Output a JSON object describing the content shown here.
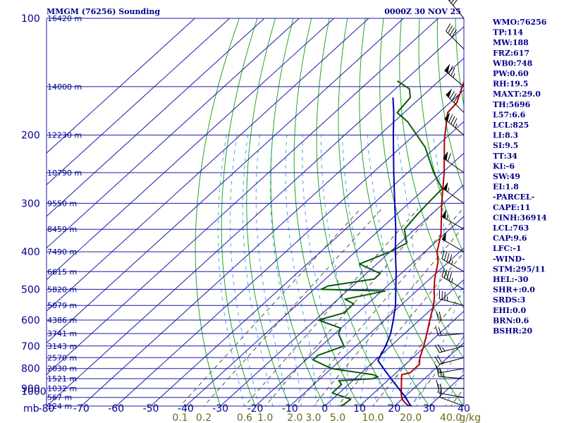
{
  "header": {
    "station": "MMGM (76256) Sounding",
    "datetime": "0000Z 30 NOV 25"
  },
  "stats": [
    "WMO:76256",
    "TP:114",
    "MW:188",
    "FRZ:617",
    "WB0:748",
    "PW:0.60",
    "RH:19.5",
    "MAXT:29.0",
    "TH:5696",
    "L57:6.6",
    "LCL:825",
    "LI:8.3",
    "SI:9.5",
    "TT:34",
    "KI:-6",
    "SW:49",
    "EI:1.8",
    "-PARCEL-",
    "CAPE:11",
    "CINH:36914",
    "LCL:763",
    "CAP:9.6",
    "LFC:-1",
    "-WIND-",
    "STM:295/11",
    "HEL:-30",
    "SHR+:0.0",
    "SRDS:3",
    "EHI:0.0",
    "BRN:0.6",
    "BSHR:20"
  ],
  "chart_data": {
    "type": "line",
    "title": "MMGM (76256) Sounding",
    "xlabel": "",
    "ylabel": "mb",
    "x_unit_label": "mb",
    "mixing_ratio_unit": "g/kg",
    "xlim": [
      -80,
      40
    ],
    "ylim": [
      1000,
      100
    ],
    "y_scale": "log",
    "grid": true,
    "pressure_ticks": [
      100,
      200,
      300,
      400,
      500,
      600,
      700,
      800,
      900,
      1000
    ],
    "temperature_ticks": [
      -80,
      -70,
      -60,
      -50,
      -40,
      -30,
      -20,
      -10,
      0,
      10,
      20,
      30,
      40
    ],
    "height_labels": [
      {
        "p": 100,
        "label": "16420 m"
      },
      {
        "p": 150,
        "label": "14000 m"
      },
      {
        "p": 200,
        "label": "12230 m"
      },
      {
        "p": 250,
        "label": "10790 m"
      },
      {
        "p": 300,
        "label": "9550 m"
      },
      {
        "p": 350,
        "label": "8459 m"
      },
      {
        "p": 400,
        "label": "7490 m"
      },
      {
        "p": 450,
        "label": "6615 m"
      },
      {
        "p": 500,
        "label": "5820 m"
      },
      {
        "p": 550,
        "label": "5079 m"
      },
      {
        "p": 600,
        "label": "4386 m"
      },
      {
        "p": 650,
        "label": "3741 m"
      },
      {
        "p": 700,
        "label": "3143 m"
      },
      {
        "p": 750,
        "label": "2570 m"
      },
      {
        "p": 800,
        "label": "2030 m"
      },
      {
        "p": 850,
        "label": "1521 m"
      },
      {
        "p": 900,
        "label": "1032 m"
      },
      {
        "p": 950,
        "label": "567 m"
      },
      {
        "p": 1000,
        "label": "124 m"
      }
    ],
    "mixing_ratio_lines": [
      0.1,
      0.2,
      0.6,
      1.0,
      2.0,
      3.0,
      5.0,
      10.0,
      20.0,
      40.0
    ],
    "mixing_ratio_labels": [
      "0.1",
      "0.2",
      "0.6",
      "1.0",
      "2.0",
      "3.0",
      "5.0",
      "10.0",
      "20.0",
      "40.0"
    ],
    "series": [
      {
        "name": "Temperature",
        "color": "#b30000",
        "points": [
          [
            1008,
            25.4
          ],
          [
            990,
            23.0
          ],
          [
            960,
            20.0
          ],
          [
            925,
            17.8
          ],
          [
            900,
            16.4
          ],
          [
            850,
            13.4
          ],
          [
            830,
            12.2
          ],
          [
            820,
            14.0
          ],
          [
            780,
            14.0
          ],
          [
            750,
            12.0
          ],
          [
            700,
            9.5
          ],
          [
            650,
            6.4
          ],
          [
            600,
            3.0
          ],
          [
            550,
            -0.6
          ],
          [
            525,
            -2.8
          ],
          [
            500,
            -5.5
          ],
          [
            470,
            -8.6
          ],
          [
            425,
            -13.0
          ],
          [
            400,
            -16.5
          ],
          [
            360,
            -21.0
          ],
          [
            300,
            -30.5
          ],
          [
            250,
            -39.5
          ],
          [
            205,
            -50.0
          ],
          [
            175,
            -57.5
          ],
          [
            165,
            -58.0
          ],
          [
            150,
            -61.5
          ],
          [
            125,
            -68.0
          ],
          [
            100,
            -75.0
          ]
        ]
      },
      {
        "name": "Dewpoint",
        "color": "#0b5a0b",
        "points": [
          [
            1008,
            4.0
          ],
          [
            990,
            5.0
          ],
          [
            960,
            5.3
          ],
          [
            925,
            -2.0
          ],
          [
            900,
            -2.0
          ],
          [
            880,
            -2.0
          ],
          [
            860,
            -4.0
          ],
          [
            850,
            5.0
          ],
          [
            840,
            6.0
          ],
          [
            830,
            4.0
          ],
          [
            800,
            -10.0
          ],
          [
            760,
            -18.0
          ],
          [
            740,
            -18.0
          ],
          [
            700,
            -13.5
          ],
          [
            650,
            -19.0
          ],
          [
            630,
            -20.0
          ],
          [
            600,
            -29.0
          ],
          [
            575,
            -24.0
          ],
          [
            545,
            -24.0
          ],
          [
            530,
            -28.0
          ],
          [
            505,
            -19.0
          ],
          [
            500,
            -38.0
          ],
          [
            490,
            -37.0
          ],
          [
            470,
            -26.0
          ],
          [
            455,
            -26.0
          ],
          [
            430,
            -35.0
          ],
          [
            400,
            -30.0
          ],
          [
            380,
            -28.0
          ],
          [
            350,
            -33.0
          ],
          [
            320,
            -34.0
          ],
          [
            300,
            -34.5
          ],
          [
            275,
            -35.0
          ],
          [
            250,
            -42.5
          ],
          [
            215,
            -53.0
          ],
          [
            185,
            -66.0
          ],
          [
            175,
            -72.0
          ],
          [
            160,
            -73.0
          ],
          [
            152,
            -76.0
          ],
          [
            145,
            -82.0
          ]
        ]
      },
      {
        "name": "Parcel",
        "color": "#0000b3",
        "points": [
          [
            1008,
            25.4
          ],
          [
            950,
            20.5
          ],
          [
            900,
            15.6
          ],
          [
            850,
            10.4
          ],
          [
            800,
            5.0
          ],
          [
            763,
            0.9
          ],
          [
            700,
            -1.5
          ],
          [
            650,
            -4.0
          ],
          [
            600,
            -7.5
          ],
          [
            550,
            -11.5
          ],
          [
            500,
            -16.5
          ],
          [
            450,
            -22.0
          ],
          [
            400,
            -28.5
          ],
          [
            350,
            -35.5
          ],
          [
            300,
            -44.0
          ],
          [
            250,
            -54.0
          ],
          [
            200,
            -66.0
          ],
          [
            175,
            -73.0
          ],
          [
            160,
            -78.0
          ]
        ]
      }
    ],
    "wind_barbs": [
      {
        "p": 1000,
        "dir": 290,
        "spd": 10
      },
      {
        "p": 950,
        "dir": 280,
        "spd": 15
      },
      {
        "p": 900,
        "dir": 270,
        "spd": 15
      },
      {
        "p": 850,
        "dir": 275,
        "spd": 25
      },
      {
        "p": 800,
        "dir": 260,
        "spd": 15
      },
      {
        "p": 750,
        "dir": 255,
        "spd": 20
      },
      {
        "p": 700,
        "dir": 255,
        "spd": 25
      },
      {
        "p": 650,
        "dir": 265,
        "spd": 20
      },
      {
        "p": 600,
        "dir": 270,
        "spd": 20
      },
      {
        "p": 550,
        "dir": 285,
        "spd": 35
      },
      {
        "p": 500,
        "dir": 300,
        "spd": 45
      },
      {
        "p": 450,
        "dir": 300,
        "spd": 45
      },
      {
        "p": 400,
        "dir": 300,
        "spd": 50
      },
      {
        "p": 350,
        "dir": 300,
        "spd": 55
      },
      {
        "p": 300,
        "dir": 305,
        "spd": 55
      },
      {
        "p": 250,
        "dir": 305,
        "spd": 60
      },
      {
        "p": 200,
        "dir": 310,
        "spd": 85
      },
      {
        "p": 175,
        "dir": 315,
        "spd": 80
      },
      {
        "p": 150,
        "dir": 310,
        "spd": 75
      },
      {
        "p": 120,
        "dir": 315,
        "spd": 40
      },
      {
        "p": 100,
        "dir": 320,
        "spd": 40
      }
    ]
  }
}
